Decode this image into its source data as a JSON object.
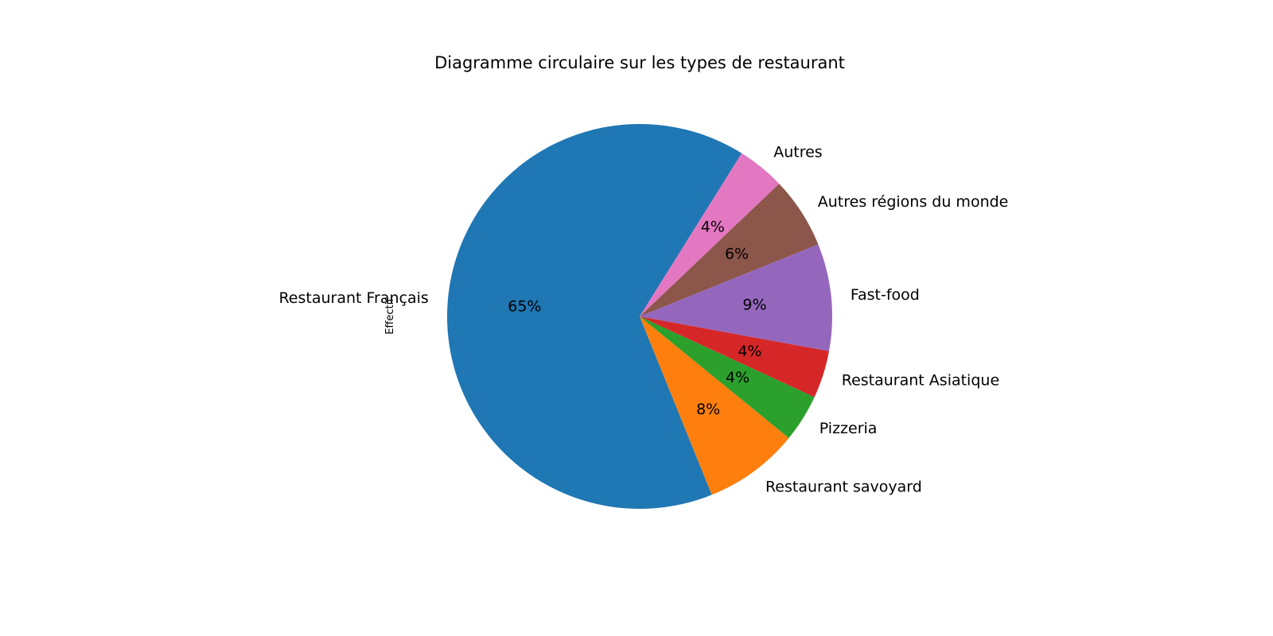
{
  "chart_data": {
    "type": "pie",
    "title": "Diagramme circulaire sur les types de restaurant",
    "ylabel": "Effectif",
    "start_angle_deg": 58,
    "direction": "counterclockwise",
    "slices": [
      {
        "label": "Restaurant Français",
        "value": 65,
        "pct_label": "65%",
        "color": "#1f77b4"
      },
      {
        "label": "Restaurant savoyard",
        "value": 8,
        "pct_label": "8%",
        "color": "#ff7f0e"
      },
      {
        "label": "Pizzeria",
        "value": 4,
        "pct_label": "4%",
        "color": "#2ca02c"
      },
      {
        "label": "Restaurant Asiatique",
        "value": 4,
        "pct_label": "4%",
        "color": "#d62728"
      },
      {
        "label": "Fast-food",
        "value": 9,
        "pct_label": "9%",
        "color": "#9467bd"
      },
      {
        "label": "Autres régions du monde",
        "value": 6,
        "pct_label": "6%",
        "color": "#8c564b"
      },
      {
        "label": "Autres",
        "value": 4,
        "pct_label": "4%",
        "color": "#e377c2"
      }
    ]
  }
}
